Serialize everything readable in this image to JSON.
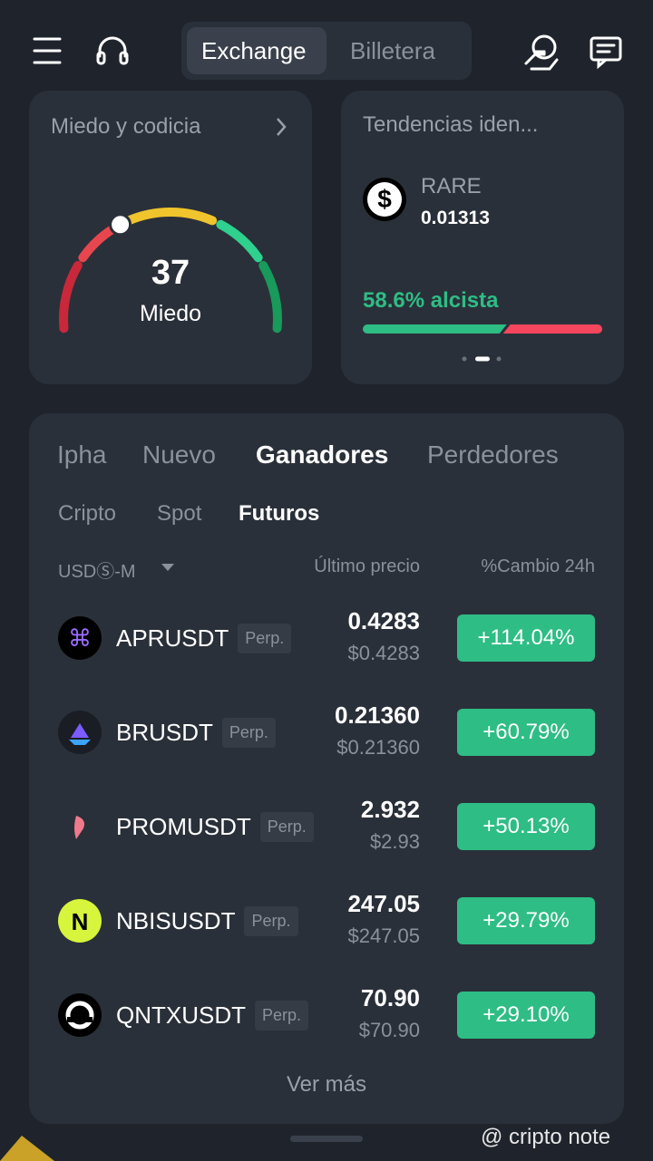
{
  "header": {
    "tabs": [
      "Exchange",
      "Billetera"
    ]
  },
  "fear_greed": {
    "title": "Miedo y codicia",
    "value": "37",
    "label": "Miedo"
  },
  "trending": {
    "title": "Tendencias iden...",
    "symbol": "RARE",
    "price": "0.01313",
    "bullish_label": "58.6% alcista",
    "bullish_percent": 58.6
  },
  "market": {
    "tabs": [
      "Ipha",
      "Nuevo",
      "Ganadores",
      "Perdedores"
    ],
    "subtabs": [
      "Cripto",
      "Spot",
      "Futuros"
    ],
    "columns": [
      "USDⓈ-M",
      "Último precio",
      "%Cambio 24h"
    ],
    "rows": [
      {
        "symbol": "APRUSDT",
        "badge": "Perp.",
        "price": "0.4283",
        "price_usd": "$0.4283",
        "change": "+114.04%"
      },
      {
        "symbol": "BRUSDT",
        "badge": "Perp.",
        "price": "0.21360",
        "price_usd": "$0.21360",
        "change": "+60.79%"
      },
      {
        "symbol": "PROMUSDT",
        "badge": "Perp.",
        "price": "2.932",
        "price_usd": "$2.93",
        "change": "+50.13%"
      },
      {
        "symbol": "NBISUSDT",
        "badge": "Perp.",
        "price": "247.05",
        "price_usd": "$247.05",
        "change": "+29.79%"
      },
      {
        "symbol": "QNTXUSDT",
        "badge": "Perp.",
        "price": "70.90",
        "price_usd": "$70.90",
        "change": "+29.10%"
      }
    ],
    "more": "Ver más"
  },
  "watermark": "@ cripto note"
}
